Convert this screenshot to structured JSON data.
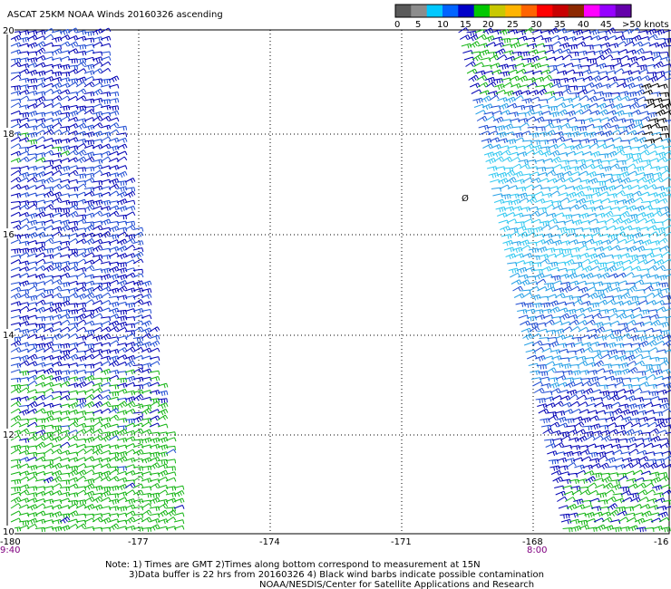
{
  "title": "ASCAT 25KM NOAA Winds 20160326 ascending",
  "legend": {
    "labels": [
      "0",
      "5",
      "10",
      "15",
      "20",
      "25",
      "30",
      "35",
      "40",
      "45",
      ">50 knots"
    ],
    "colors": [
      "#5a5a5a",
      "#8c8c8c",
      "#00c8ff",
      "#0064ff",
      "#0000c8",
      "#00c800",
      "#c8c800",
      "#ffb400",
      "#ff6400",
      "#ff0000",
      "#c80000",
      "#8c2800",
      "#ff00ff",
      "#9600ff",
      "#6400aa"
    ]
  },
  "lat_labels": [
    "20",
    "18",
    "16",
    "14",
    "12",
    "10"
  ],
  "lon_labels": [
    "-180",
    "-177",
    "-174",
    "-171",
    "-168",
    "-16"
  ],
  "times": [
    "9:40",
    "8:00"
  ],
  "notes": [
    "Note: 1) Times are GMT 2)Times along bottom correspond to measurement at 15N",
    "3)Data buffer is 22 hrs from 20160326 4) Black wind barbs indicate possible contamination",
    "NOAA/NESDIS/Center for Satellite Applications and Research"
  ],
  "symbol_label": "Ø",
  "swath_colors": {
    "dark_blue": "#0000b4",
    "blue": "#1e4bd2",
    "light_blue": "#28a0e6",
    "cyan": "#32c8f0",
    "green": "#14b414",
    "black": "#000000"
  }
}
